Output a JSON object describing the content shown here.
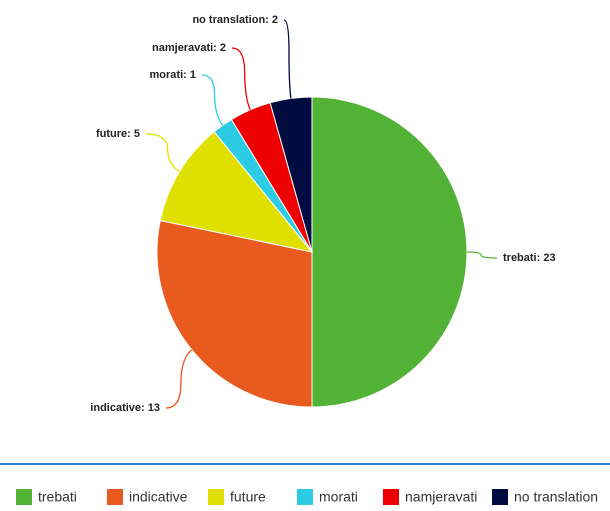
{
  "chart_data": {
    "type": "pie",
    "categories": [
      "trebati",
      "indicative",
      "future",
      "morati",
      "namjeravati",
      "no translation"
    ],
    "values": [
      23,
      13,
      5,
      1,
      2,
      2
    ],
    "value_labels": [
      "trebati: 23",
      "indicative: 13",
      "future: 5",
      "morati: 1",
      "namjeravati: 2",
      "no translation: 2"
    ],
    "colors": [
      "#52b236",
      "#e95a1f",
      "#dfe000",
      "#2ccce4",
      "#ef0000",
      "#000c3f"
    ],
    "legend": "bottom"
  }
}
